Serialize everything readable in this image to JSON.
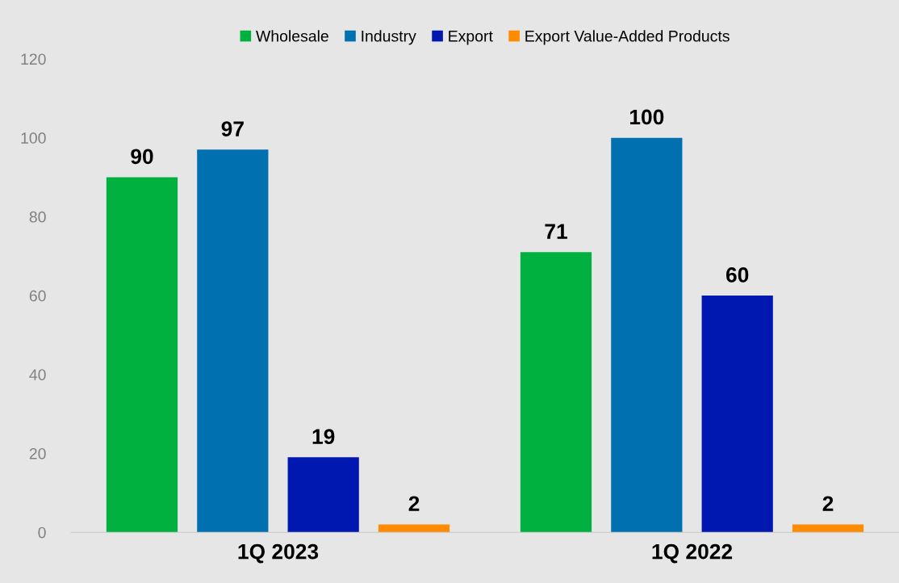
{
  "chart_data": {
    "type": "bar",
    "categories": [
      "1Q 2023",
      "1Q 2022"
    ],
    "series": [
      {
        "name": "Wholesale",
        "color": "#00b140",
        "values": [
          90,
          71
        ]
      },
      {
        "name": "Industry",
        "color": "#0070b0",
        "values": [
          97,
          100
        ]
      },
      {
        "name": "Export",
        "color": "#0018b0",
        "values": [
          19,
          60
        ]
      },
      {
        "name": "Export Value-Added Products",
        "color": "#ff8c00",
        "values": [
          2,
          2
        ]
      }
    ],
    "ylim": [
      0,
      120
    ],
    "yticks": [
      0,
      20,
      40,
      60,
      80,
      100,
      120
    ],
    "data_labels": true,
    "legend": "top",
    "grid": false
  }
}
